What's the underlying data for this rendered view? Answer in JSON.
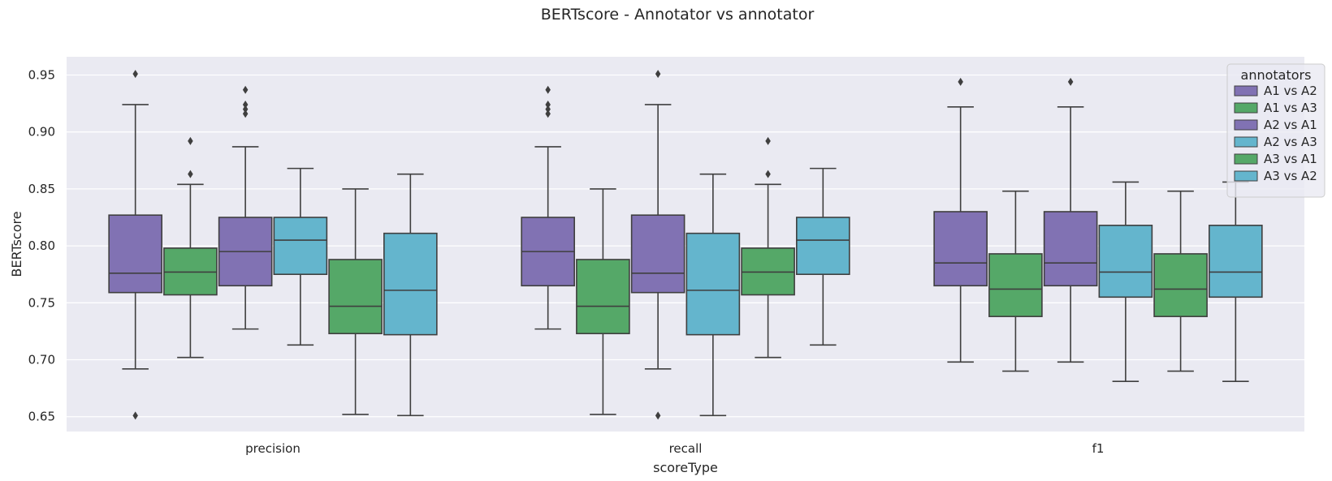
{
  "chart_data": {
    "type": "box",
    "title": "BERTscore - Annotator vs annotator",
    "xlabel": "scoreType",
    "ylabel": "BERTscore",
    "ylim": [
      0.637,
      0.966
    ],
    "yticks": [
      "0.65",
      "0.70",
      "0.75",
      "0.80",
      "0.85",
      "0.90",
      "0.95"
    ],
    "grid": true,
    "legend": {
      "title": "annotators",
      "placement": "top-right"
    },
    "categories": [
      "precision",
      "recall",
      "f1"
    ],
    "series": [
      {
        "name": "A1 vs A2",
        "color": "#8172b3",
        "boxes": [
          {
            "whisker_low": 0.692,
            "q1": 0.759,
            "median": 0.776,
            "q3": 0.827,
            "whisker_high": 0.924,
            "outliers": [
              0.951,
              0.651
            ]
          },
          {
            "whisker_low": 0.727,
            "q1": 0.765,
            "median": 0.795,
            "q3": 0.825,
            "whisker_high": 0.887,
            "outliers": [
              0.937,
              0.924,
              0.92,
              0.916
            ]
          },
          {
            "whisker_low": 0.698,
            "q1": 0.765,
            "median": 0.785,
            "q3": 0.83,
            "whisker_high": 0.922,
            "outliers": [
              0.944
            ]
          }
        ]
      },
      {
        "name": "A1 vs A3",
        "color": "#55a868",
        "boxes": [
          {
            "whisker_low": 0.702,
            "q1": 0.757,
            "median": 0.777,
            "q3": 0.798,
            "whisker_high": 0.854,
            "outliers": [
              0.892,
              0.863
            ]
          },
          {
            "whisker_low": 0.652,
            "q1": 0.723,
            "median": 0.747,
            "q3": 0.788,
            "whisker_high": 0.85,
            "outliers": []
          },
          {
            "whisker_low": 0.69,
            "q1": 0.738,
            "median": 0.762,
            "q3": 0.793,
            "whisker_high": 0.848,
            "outliers": []
          }
        ]
      },
      {
        "name": "A2 vs A1",
        "color": "#8172b3",
        "boxes": [
          {
            "whisker_low": 0.727,
            "q1": 0.765,
            "median": 0.795,
            "q3": 0.825,
            "whisker_high": 0.887,
            "outliers": [
              0.937,
              0.924,
              0.92,
              0.916
            ]
          },
          {
            "whisker_low": 0.692,
            "q1": 0.759,
            "median": 0.776,
            "q3": 0.827,
            "whisker_high": 0.924,
            "outliers": [
              0.951,
              0.651
            ]
          },
          {
            "whisker_low": 0.698,
            "q1": 0.765,
            "median": 0.785,
            "q3": 0.83,
            "whisker_high": 0.922,
            "outliers": [
              0.944
            ]
          }
        ]
      },
      {
        "name": "A2 vs A3",
        "color": "#64b5cd",
        "boxes": [
          {
            "whisker_low": 0.713,
            "q1": 0.775,
            "median": 0.805,
            "q3": 0.825,
            "whisker_high": 0.868,
            "outliers": []
          },
          {
            "whisker_low": 0.651,
            "q1": 0.722,
            "median": 0.761,
            "q3": 0.811,
            "whisker_high": 0.863,
            "outliers": []
          },
          {
            "whisker_low": 0.681,
            "q1": 0.755,
            "median": 0.777,
            "q3": 0.818,
            "whisker_high": 0.856,
            "outliers": []
          }
        ]
      },
      {
        "name": "A3 vs A1",
        "color": "#55a868",
        "boxes": [
          {
            "whisker_low": 0.652,
            "q1": 0.723,
            "median": 0.747,
            "q3": 0.788,
            "whisker_high": 0.85,
            "outliers": []
          },
          {
            "whisker_low": 0.702,
            "q1": 0.757,
            "median": 0.777,
            "q3": 0.798,
            "whisker_high": 0.854,
            "outliers": [
              0.892,
              0.863
            ]
          },
          {
            "whisker_low": 0.69,
            "q1": 0.738,
            "median": 0.762,
            "q3": 0.793,
            "whisker_high": 0.848,
            "outliers": []
          }
        ]
      },
      {
        "name": "A3 vs A2",
        "color": "#64b5cd",
        "boxes": [
          {
            "whisker_low": 0.651,
            "q1": 0.722,
            "median": 0.761,
            "q3": 0.811,
            "whisker_high": 0.863,
            "outliers": []
          },
          {
            "whisker_low": 0.713,
            "q1": 0.775,
            "median": 0.805,
            "q3": 0.825,
            "whisker_high": 0.868,
            "outliers": []
          },
          {
            "whisker_low": 0.681,
            "q1": 0.755,
            "median": 0.777,
            "q3": 0.818,
            "whisker_high": 0.856,
            "outliers": []
          }
        ]
      }
    ]
  }
}
